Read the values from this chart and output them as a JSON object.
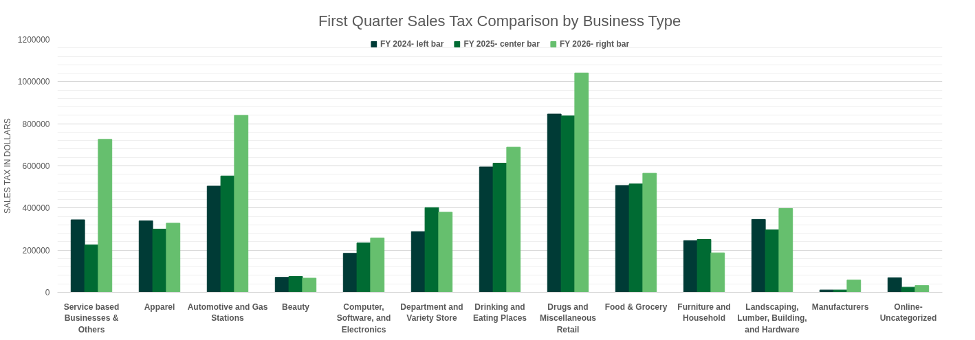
{
  "chart_data": {
    "type": "bar",
    "title": "First Quarter Sales Tax Comparison by Business Type",
    "ylabel": "SALES TAX IN DOLLARS",
    "categories": [
      "Service based Businesses & Others",
      "Apparel",
      "Automotive and Gas Stations",
      "Beauty",
      "Computer, Software, and Electronics",
      "Department and Variety Store",
      "Drinking and Eating Places",
      "Drugs and Miscellaneous Retail",
      "Food & Grocery",
      "Furniture and Household",
      "Landscaping, Lumber, Building, and Hardware",
      "Manufacturers",
      "Online-Uncategorized"
    ],
    "series": [
      {
        "name": "FY 2024- left bar",
        "color": "#003b36",
        "values": [
          344000,
          339000,
          504000,
          71000,
          185000,
          288000,
          595000,
          846000,
          507000,
          245000,
          346000,
          11000,
          69000
        ]
      },
      {
        "name": "FY 2025- center bar",
        "color": "#006b33",
        "values": [
          225000,
          300000,
          552000,
          75000,
          234000,
          402000,
          613000,
          837000,
          514000,
          251000,
          296000,
          11000,
          24000
        ]
      },
      {
        "name": "FY 2026- right bar",
        "color": "#66bf6e",
        "values": [
          726000,
          328000,
          840000,
          67000,
          258000,
          380000,
          689000,
          1041000,
          565000,
          187000,
          398000,
          58000,
          32000
        ]
      }
    ],
    "ylim": [
      0,
      1200000
    ],
    "yticks": [
      0,
      {
        "value": 40000,
        "label": null
      },
      {
        "value": 80000,
        "label": null
      },
      {
        "value": 120000,
        "label": null
      },
      {
        "value": 160000,
        "label": null
      },
      200000,
      {
        "value": 240000,
        "label": null
      },
      {
        "value": 280000,
        "label": null
      },
      {
        "value": 320000,
        "label": null
      },
      {
        "value": 360000,
        "label": null
      },
      400000,
      {
        "value": 440000,
        "label": null
      },
      {
        "value": 480000,
        "label": null
      },
      {
        "value": 520000,
        "label": null
      },
      {
        "value": 560000,
        "label": null
      },
      600000,
      {
        "value": 640000,
        "label": null
      },
      {
        "value": 680000,
        "label": null
      },
      {
        "value": 720000,
        "label": null
      },
      {
        "value": 760000,
        "label": null
      },
      800000,
      {
        "value": 840000,
        "label": null
      },
      {
        "value": 880000,
        "label": null
      },
      {
        "value": 920000,
        "label": null
      },
      {
        "value": 960000,
        "label": null
      },
      1000000,
      {
        "value": 1040000,
        "label": null
      },
      {
        "value": 1080000,
        "label": null
      },
      {
        "value": 1120000,
        "label": null
      },
      {
        "value": 1160000,
        "label": null
      },
      1200000
    ],
    "grid": "y",
    "legend": "top"
  }
}
